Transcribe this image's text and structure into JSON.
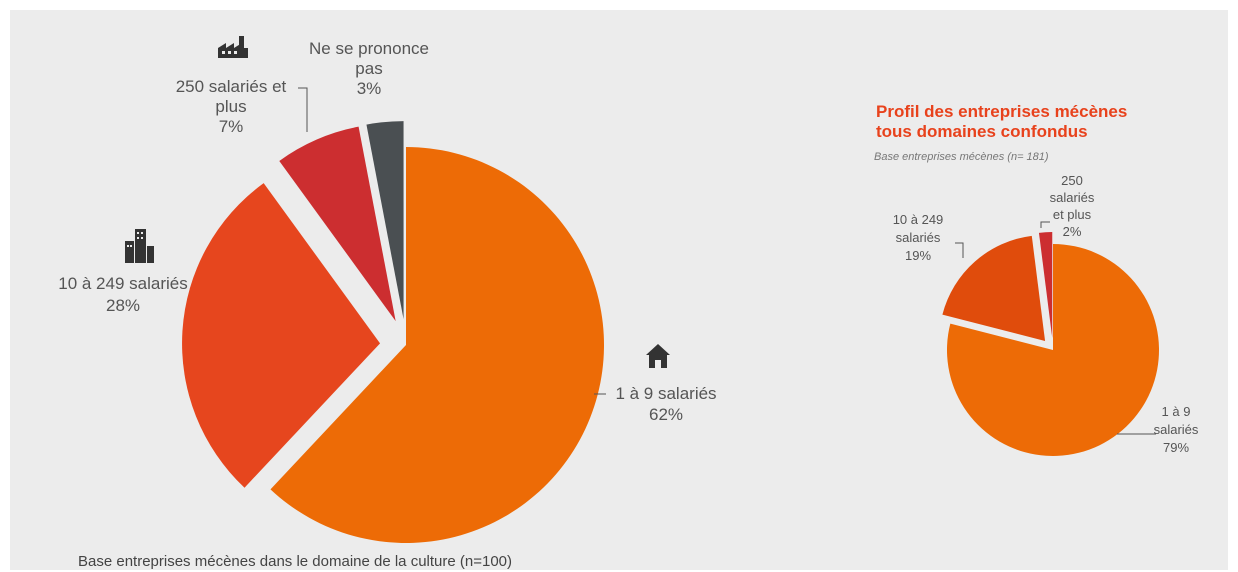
{
  "chart_data": [
    {
      "type": "pie",
      "categories": [
        "1 à 9 salariés",
        "10 à 249 salariés",
        "250 salariés et plus",
        "Ne se prononce pas"
      ],
      "values": [
        62,
        28,
        7,
        3
      ],
      "labels": [
        "62%",
        "28%",
        "7%",
        "3%"
      ],
      "colors": [
        "#ed6b06",
        "#e6461e",
        "#cc2e30",
        "#4a4f52"
      ],
      "icons": [
        "house-icon",
        "office-buildings-icon",
        "factory-icon",
        ""
      ],
      "note": "Base entreprises mécènes dans le domaine de la culture (n=100)"
    },
    {
      "type": "pie",
      "title": "Profil des entreprises mécènes tous domaines confondus",
      "title_lines": [
        "Profil des entreprises mécènes",
        "tous domaines confondus"
      ],
      "subtitle": "Base entreprises mécènes (n= 181)",
      "categories": [
        "1 à 9 salariés",
        "10 à 249 salariés",
        "250 salariés et plus"
      ],
      "values": [
        79,
        19,
        2
      ],
      "labels": [
        "79%",
        "19%",
        "2%"
      ],
      "colors": [
        "#ed6b06",
        "#e04c0c",
        "#cc2e30"
      ]
    }
  ],
  "text": {
    "left_labels": {
      "ne_se_1": "Ne se prononce",
      "ne_se_2": "pas",
      "ne_se_pct": "3%",
      "s250_1": "250 salariés et",
      "s250_2": "plus",
      "s250_pct": "7%",
      "s10_1": "10 à 249 salariés",
      "s10_pct": "28%",
      "s1_1": "1 à 9 salariés",
      "s1_pct": "62%"
    },
    "right_labels": {
      "s250_1": "250",
      "s250_2": "salariés",
      "s250_3": "et plus",
      "s250_pct": "2%",
      "s10_1": "10 à 249",
      "s10_2": "salariés",
      "s10_pct": "19%",
      "s1_1": "1 à 9",
      "s1_2": "salariés",
      "s1_pct": "79%"
    }
  },
  "icon_color": "#333333"
}
